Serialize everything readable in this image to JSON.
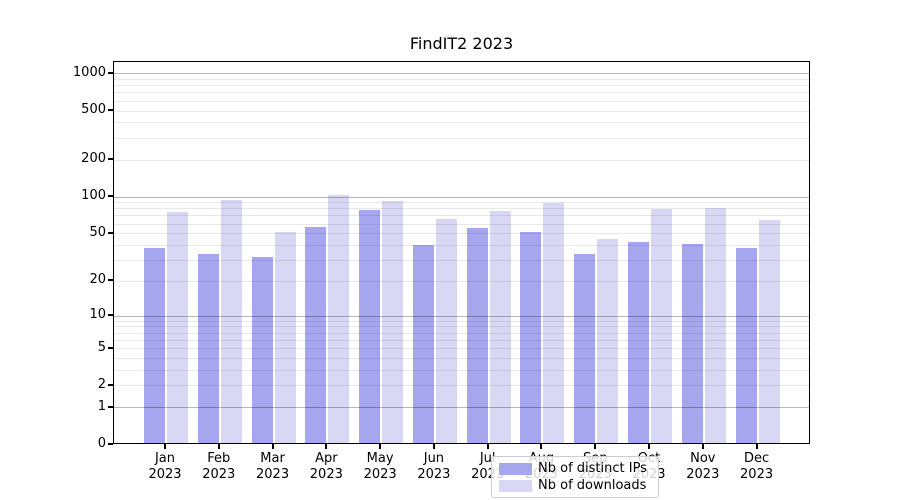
{
  "chart_data": {
    "type": "bar",
    "title": "FindIT2 2023",
    "categories": [
      "Jan",
      "Feb",
      "Mar",
      "Apr",
      "May",
      "Jun",
      "Jul",
      "Aug",
      "Sep",
      "Oct",
      "Nov",
      "Dec"
    ],
    "category_year": "2023",
    "series": [
      {
        "name": "Nb of distinct IPs",
        "color": "#a6a6ef",
        "values": [
          37,
          33,
          31,
          55,
          75,
          39,
          54,
          50,
          33,
          41,
          40,
          37
        ]
      },
      {
        "name": "Nb of downloads",
        "color": "#d8d8f5",
        "values": [
          73,
          91,
          50,
          100,
          90,
          64,
          74,
          87,
          44,
          77,
          78,
          63
        ]
      }
    ],
    "yscale": "log1p",
    "ylim": [
      0,
      1250
    ],
    "ytick_labels": [
      "0",
      "1",
      "2",
      "5",
      "10",
      "20",
      "50",
      "100",
      "200",
      "500",
      "1000"
    ],
    "ytick_values": [
      0,
      1,
      2,
      5,
      10,
      20,
      50,
      100,
      200,
      500,
      1000
    ],
    "grid_major": [
      1,
      10,
      100,
      1000
    ],
    "grid_minor": [
      2,
      3,
      4,
      5,
      6,
      7,
      8,
      9,
      20,
      30,
      40,
      50,
      60,
      70,
      80,
      90,
      200,
      300,
      400,
      500,
      600,
      700,
      800,
      900
    ],
    "grid": "on",
    "legend_position": "lower center",
    "xlabel": "",
    "ylabel": ""
  }
}
